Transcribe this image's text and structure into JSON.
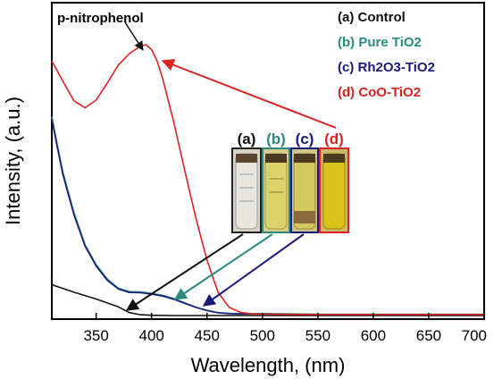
{
  "chart_data": {
    "type": "line",
    "title": "",
    "xlabel": "Wavelength, (nm)",
    "ylabel": "Intensity, (a.u.)",
    "xlim": [
      310,
      700
    ],
    "ylim": [
      0,
      1
    ],
    "xticks": [
      350,
      400,
      450,
      500,
      550,
      600,
      650,
      700
    ],
    "grid": false,
    "legend_position": "top-right",
    "annotation": "p-nitrophenol",
    "inset_labels": [
      "(a)",
      "(b)",
      "(c)",
      "(d)"
    ],
    "series": [
      {
        "name": "(a) Control",
        "color": "#111111",
        "x": [
          310,
          330,
          350,
          370,
          380,
          390,
          400,
          420,
          450,
          500,
          550,
          600,
          650,
          700
        ],
        "y": [
          0.114,
          0.086,
          0.061,
          0.032,
          0.011,
          0.003,
          0.001,
          0.0,
          0.0,
          0.0,
          0.0,
          0.0,
          0.0,
          0.0
        ]
      },
      {
        "name": "(b) Pure TiO2",
        "color": "#2a8a7e",
        "x": [
          310,
          315,
          320,
          330,
          340,
          350,
          360,
          370,
          380,
          390,
          400,
          410,
          420,
          430,
          440,
          450,
          460,
          470,
          480,
          490,
          500,
          550,
          600,
          650,
          700
        ],
        "y": [
          0.735,
          0.63,
          0.53,
          0.38,
          0.262,
          0.188,
          0.135,
          0.101,
          0.088,
          0.087,
          0.082,
          0.075,
          0.062,
          0.047,
          0.031,
          0.019,
          0.011,
          0.008,
          0.007,
          0.007,
          0.007,
          0.005,
          0.005,
          0.005,
          0.005
        ]
      },
      {
        "name": "(c) Rh2O3-TiO2",
        "color": "#1a1a7a",
        "x": [
          310,
          315,
          320,
          330,
          340,
          350,
          360,
          370,
          380,
          390,
          400,
          410,
          420,
          430,
          440,
          450,
          460,
          470,
          480,
          490,
          500,
          550,
          600,
          650,
          700
        ],
        "y": [
          0.725,
          0.62,
          0.52,
          0.372,
          0.256,
          0.183,
          0.13,
          0.098,
          0.085,
          0.084,
          0.079,
          0.072,
          0.06,
          0.045,
          0.03,
          0.018,
          0.01,
          0.007,
          0.006,
          0.006,
          0.006,
          0.004,
          0.004,
          0.004,
          0.004
        ]
      },
      {
        "name": "(d) CoO-TiO2",
        "color": "#dd2222",
        "x": [
          310,
          320,
          330,
          340,
          350,
          360,
          370,
          380,
          390,
          395,
          400,
          405,
          410,
          420,
          430,
          440,
          450,
          460,
          470,
          480,
          490,
          500,
          550,
          600,
          650,
          700
        ],
        "y": [
          0.94,
          0.865,
          0.793,
          0.767,
          0.795,
          0.858,
          0.925,
          0.967,
          0.995,
          1.0,
          0.982,
          0.94,
          0.875,
          0.715,
          0.535,
          0.36,
          0.205,
          0.085,
          0.03,
          0.012,
          0.006,
          0.005,
          0.004,
          0.004,
          0.004,
          0.004
        ]
      }
    ]
  }
}
